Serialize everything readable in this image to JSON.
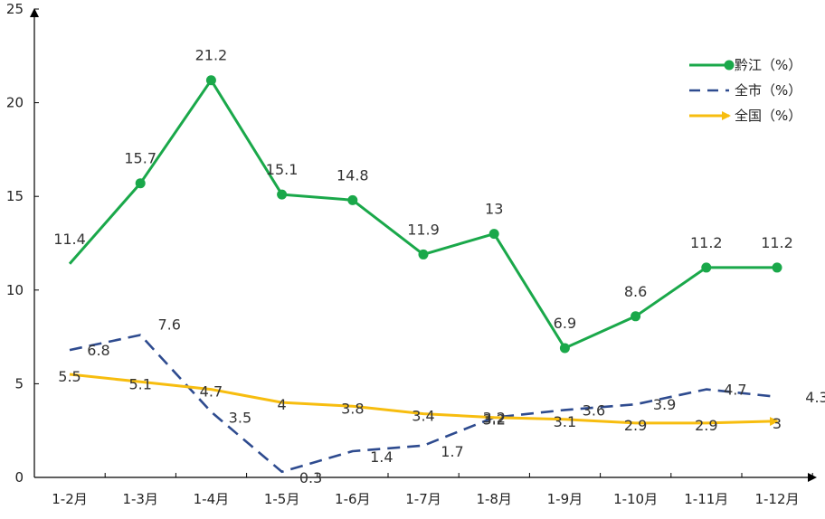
{
  "chart_data": {
    "type": "line",
    "title": "",
    "xlabel": "",
    "ylabel": "",
    "ylim": [
      0,
      25
    ],
    "yticks": [
      0,
      5,
      10,
      15,
      20,
      25
    ],
    "categories": [
      "1-2月",
      "1-3月",
      "1-4月",
      "1-5月",
      "1-6月",
      "1-7月",
      "1-8月",
      "1-9月",
      "1-10月",
      "1-11月",
      "1-12月"
    ],
    "legend_position": "top-right",
    "series": [
      {
        "name": "黔江（%）",
        "color": "#1aa84a",
        "style": "solid-dot",
        "values": [
          11.4,
          15.7,
          21.2,
          15.1,
          14.8,
          11.9,
          13,
          6.9,
          8.6,
          11.2,
          11.2
        ],
        "labels": [
          "11.4",
          "15.7",
          "21.2",
          "15.1",
          "14.8",
          "11.9",
          "13",
          "6.9",
          "8.6",
          "11.2",
          "11.2"
        ]
      },
      {
        "name": "全市（%）",
        "color": "#2e4b8f",
        "style": "dashed",
        "values": [
          6.8,
          7.6,
          3.5,
          0.3,
          1.4,
          1.7,
          3.2,
          3.6,
          3.9,
          4.7,
          4.3
        ],
        "labels": [
          "6.8",
          "7.6",
          "3.5",
          "0.3",
          "1.4",
          "1.7",
          "3.2",
          "3.6",
          "3.9",
          "4.7",
          "4.3"
        ]
      },
      {
        "name": "全国（%）",
        "color": "#f7bd0f",
        "style": "solid-arrow",
        "values": [
          5.5,
          5.1,
          4.7,
          4,
          3.8,
          3.4,
          3.2,
          3.1,
          2.9,
          2.9,
          3
        ],
        "labels": [
          "5.5",
          "5.1",
          "4.7",
          "4",
          "3.8",
          "3.4",
          "3.2",
          "3.1",
          "2.9",
          "2.9",
          "3"
        ]
      }
    ]
  }
}
